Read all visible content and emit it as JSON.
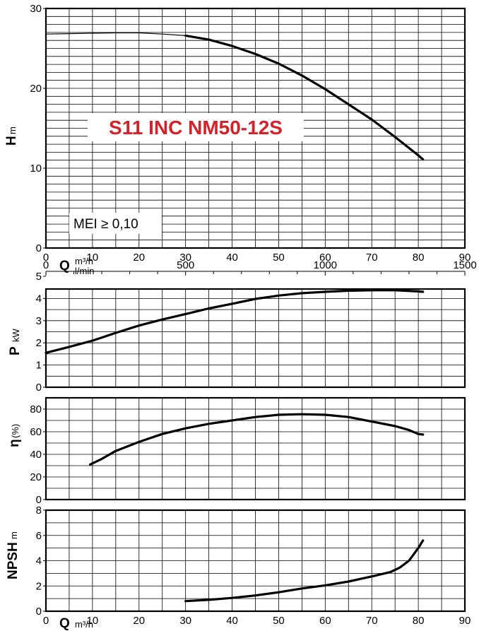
{
  "chart_data": [
    {
      "type": "line",
      "title": "S11 INC NM50-12S",
      "badge": "MEI ≥ 0,10",
      "ylabel": "H",
      "yunit": "m",
      "xlabel": "Q",
      "xunit": "m³/h",
      "xunit_alt": "l/min",
      "xlim": [
        0,
        90
      ],
      "ylim": [
        0,
        30
      ],
      "xticks": [
        "0",
        "10",
        "20",
        "30",
        "40",
        "50",
        "60",
        "70",
        "80",
        "90"
      ],
      "yticks": [
        "0",
        "10",
        "20",
        "30"
      ],
      "alt_xticks": [
        "0",
        "500",
        "1000",
        "1500"
      ],
      "grid": true,
      "title_color": "#d2232a",
      "series": [
        {
          "name": "",
          "style": "thin",
          "points": [
            [
              0,
              26.8
            ],
            [
              5,
              26.85
            ],
            [
              10,
              26.9
            ],
            [
              15,
              26.95
            ],
            [
              20,
              26.95
            ],
            [
              25,
              26.8
            ],
            [
              30,
              26.6
            ]
          ]
        },
        {
          "name": "",
          "style": "thick",
          "points": [
            [
              30,
              26.6
            ],
            [
              35,
              26.1
            ],
            [
              40,
              25.3
            ],
            [
              45,
              24.3
            ],
            [
              50,
              23.1
            ],
            [
              55,
              21.6
            ],
            [
              60,
              19.9
            ],
            [
              65,
              18.0
            ],
            [
              70,
              16.1
            ],
            [
              75,
              13.9
            ],
            [
              80,
              11.6
            ],
            [
              81,
              11.1
            ]
          ]
        }
      ]
    },
    {
      "type": "line",
      "ylabel": "P",
      "yunit": "kW",
      "xlim": [
        0,
        90
      ],
      "ylim": [
        0,
        5
      ],
      "yticks": [
        "0",
        "1",
        "2",
        "3",
        "4",
        "5"
      ],
      "grid": true,
      "series": [
        {
          "name": "",
          "points": [
            [
              0,
              1.55
            ],
            [
              5,
              1.82
            ],
            [
              10,
              2.1
            ],
            [
              15,
              2.45
            ],
            [
              20,
              2.78
            ],
            [
              25,
              3.05
            ],
            [
              30,
              3.3
            ],
            [
              35,
              3.55
            ],
            [
              40,
              3.76
            ],
            [
              45,
              3.98
            ],
            [
              50,
              4.13
            ],
            [
              55,
              4.24
            ],
            [
              60,
              4.3
            ],
            [
              65,
              4.35
            ],
            [
              70,
              4.37
            ],
            [
              75,
              4.37
            ],
            [
              80,
              4.32
            ],
            [
              81,
              4.3
            ]
          ]
        }
      ]
    },
    {
      "type": "line",
      "ylabel": "η",
      "yunit": "(%)",
      "xlim": [
        0,
        90
      ],
      "ylim": [
        0,
        90
      ],
      "yticks": [
        "0",
        "20",
        "40",
        "60",
        "80"
      ],
      "grid": true,
      "series": [
        {
          "name": "",
          "points": [
            [
              9.5,
              31
            ],
            [
              12,
              36
            ],
            [
              15,
              43
            ],
            [
              20,
              51
            ],
            [
              25,
              58
            ],
            [
              30,
              63
            ],
            [
              35,
              67
            ],
            [
              40,
              70
            ],
            [
              45,
              73
            ],
            [
              50,
              75
            ],
            [
              55,
              75.5
            ],
            [
              60,
              75
            ],
            [
              65,
              73
            ],
            [
              70,
              69
            ],
            [
              75,
              65
            ],
            [
              78,
              61.5
            ],
            [
              80,
              58
            ],
            [
              81,
              57.5
            ]
          ]
        }
      ]
    },
    {
      "type": "line",
      "ylabel": "NPSH",
      "yunit": "m",
      "xlabel": "Q",
      "xunit": "m³/h",
      "xlim": [
        0,
        90
      ],
      "ylim": [
        0,
        8
      ],
      "xticks": [
        "0",
        "10",
        "20",
        "30",
        "40",
        "50",
        "60",
        "70",
        "80",
        "90"
      ],
      "yticks": [
        "0",
        "2",
        "4",
        "6",
        "8"
      ],
      "grid": true,
      "series": [
        {
          "name": "",
          "points": [
            [
              30,
              0.8
            ],
            [
              35,
              0.9
            ],
            [
              40,
              1.05
            ],
            [
              45,
              1.25
            ],
            [
              50,
              1.5
            ],
            [
              55,
              1.8
            ],
            [
              60,
              2.05
            ],
            [
              65,
              2.35
            ],
            [
              70,
              2.75
            ],
            [
              74,
              3.1
            ],
            [
              76,
              3.45
            ],
            [
              78,
              4.0
            ],
            [
              80,
              5.0
            ],
            [
              81,
              5.6
            ]
          ]
        }
      ]
    }
  ]
}
